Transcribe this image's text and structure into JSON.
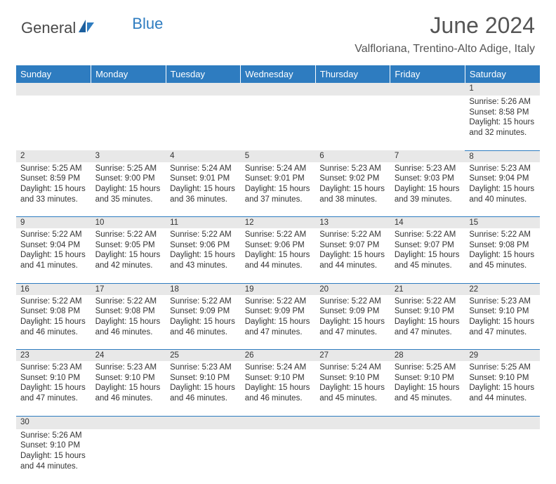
{
  "brand": {
    "name1": "General",
    "name2": "Blue",
    "icon_fill": "#2e7cc0"
  },
  "title": "June 2024",
  "location": "Valfloriana, Trentino-Alto Adige, Italy",
  "header_bg": "#2e7cc0",
  "daynum_bg": "#e8e8e8",
  "border_color": "#2e7cc0",
  "weekdays": [
    "Sunday",
    "Monday",
    "Tuesday",
    "Wednesday",
    "Thursday",
    "Friday",
    "Saturday"
  ],
  "weeks": [
    [
      null,
      null,
      null,
      null,
      null,
      null,
      {
        "n": "1",
        "sunrise": "5:26 AM",
        "sunset": "8:58 PM",
        "dlh": "15",
        "dlm": "32"
      }
    ],
    [
      {
        "n": "2",
        "sunrise": "5:25 AM",
        "sunset": "8:59 PM",
        "dlh": "15",
        "dlm": "33"
      },
      {
        "n": "3",
        "sunrise": "5:25 AM",
        "sunset": "9:00 PM",
        "dlh": "15",
        "dlm": "35"
      },
      {
        "n": "4",
        "sunrise": "5:24 AM",
        "sunset": "9:01 PM",
        "dlh": "15",
        "dlm": "36"
      },
      {
        "n": "5",
        "sunrise": "5:24 AM",
        "sunset": "9:01 PM",
        "dlh": "15",
        "dlm": "37"
      },
      {
        "n": "6",
        "sunrise": "5:23 AM",
        "sunset": "9:02 PM",
        "dlh": "15",
        "dlm": "38"
      },
      {
        "n": "7",
        "sunrise": "5:23 AM",
        "sunset": "9:03 PM",
        "dlh": "15",
        "dlm": "39"
      },
      {
        "n": "8",
        "sunrise": "5:23 AM",
        "sunset": "9:04 PM",
        "dlh": "15",
        "dlm": "40"
      }
    ],
    [
      {
        "n": "9",
        "sunrise": "5:22 AM",
        "sunset": "9:04 PM",
        "dlh": "15",
        "dlm": "41"
      },
      {
        "n": "10",
        "sunrise": "5:22 AM",
        "sunset": "9:05 PM",
        "dlh": "15",
        "dlm": "42"
      },
      {
        "n": "11",
        "sunrise": "5:22 AM",
        "sunset": "9:06 PM",
        "dlh": "15",
        "dlm": "43"
      },
      {
        "n": "12",
        "sunrise": "5:22 AM",
        "sunset": "9:06 PM",
        "dlh": "15",
        "dlm": "44"
      },
      {
        "n": "13",
        "sunrise": "5:22 AM",
        "sunset": "9:07 PM",
        "dlh": "15",
        "dlm": "44"
      },
      {
        "n": "14",
        "sunrise": "5:22 AM",
        "sunset": "9:07 PM",
        "dlh": "15",
        "dlm": "45"
      },
      {
        "n": "15",
        "sunrise": "5:22 AM",
        "sunset": "9:08 PM",
        "dlh": "15",
        "dlm": "45"
      }
    ],
    [
      {
        "n": "16",
        "sunrise": "5:22 AM",
        "sunset": "9:08 PM",
        "dlh": "15",
        "dlm": "46"
      },
      {
        "n": "17",
        "sunrise": "5:22 AM",
        "sunset": "9:08 PM",
        "dlh": "15",
        "dlm": "46"
      },
      {
        "n": "18",
        "sunrise": "5:22 AM",
        "sunset": "9:09 PM",
        "dlh": "15",
        "dlm": "46"
      },
      {
        "n": "19",
        "sunrise": "5:22 AM",
        "sunset": "9:09 PM",
        "dlh": "15",
        "dlm": "47"
      },
      {
        "n": "20",
        "sunrise": "5:22 AM",
        "sunset": "9:09 PM",
        "dlh": "15",
        "dlm": "47"
      },
      {
        "n": "21",
        "sunrise": "5:22 AM",
        "sunset": "9:10 PM",
        "dlh": "15",
        "dlm": "47"
      },
      {
        "n": "22",
        "sunrise": "5:23 AM",
        "sunset": "9:10 PM",
        "dlh": "15",
        "dlm": "47"
      }
    ],
    [
      {
        "n": "23",
        "sunrise": "5:23 AM",
        "sunset": "9:10 PM",
        "dlh": "15",
        "dlm": "47"
      },
      {
        "n": "24",
        "sunrise": "5:23 AM",
        "sunset": "9:10 PM",
        "dlh": "15",
        "dlm": "46"
      },
      {
        "n": "25",
        "sunrise": "5:23 AM",
        "sunset": "9:10 PM",
        "dlh": "15",
        "dlm": "46"
      },
      {
        "n": "26",
        "sunrise": "5:24 AM",
        "sunset": "9:10 PM",
        "dlh": "15",
        "dlm": "46"
      },
      {
        "n": "27",
        "sunrise": "5:24 AM",
        "sunset": "9:10 PM",
        "dlh": "15",
        "dlm": "45"
      },
      {
        "n": "28",
        "sunrise": "5:25 AM",
        "sunset": "9:10 PM",
        "dlh": "15",
        "dlm": "45"
      },
      {
        "n": "29",
        "sunrise": "5:25 AM",
        "sunset": "9:10 PM",
        "dlh": "15",
        "dlm": "44"
      }
    ],
    [
      {
        "n": "30",
        "sunrise": "5:26 AM",
        "sunset": "9:10 PM",
        "dlh": "15",
        "dlm": "44"
      },
      null,
      null,
      null,
      null,
      null,
      null
    ]
  ],
  "labels": {
    "sunrise": "Sunrise:",
    "sunset": "Sunset:",
    "daylight_prefix": "Daylight:",
    "hours_word": "hours",
    "and_word": "and",
    "minutes_word": "minutes."
  }
}
